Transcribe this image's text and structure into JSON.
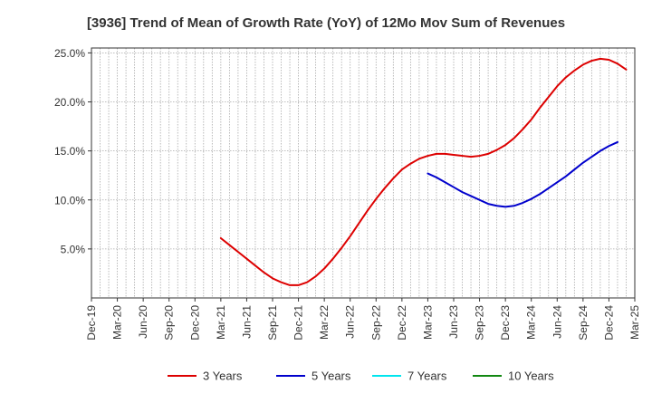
{
  "chart_data": {
    "type": "line",
    "title": "[3936]  Trend of Mean of Growth Rate (YoY) of 12Mo Mov Sum of Revenues",
    "xlabel": "",
    "ylabel": "",
    "x_ticks": [
      "Dec-19",
      "Mar-20",
      "Jun-20",
      "Sep-20",
      "Dec-20",
      "Mar-21",
      "Jun-21",
      "Sep-21",
      "Dec-21",
      "Mar-22",
      "Jun-22",
      "Sep-22",
      "Dec-22",
      "Mar-23",
      "Jun-23",
      "Sep-23",
      "Dec-23",
      "Mar-24",
      "Jun-24",
      "Sep-24",
      "Dec-24",
      "Mar-25"
    ],
    "y_ticks": [
      5.0,
      10.0,
      15.0,
      20.0,
      25.0
    ],
    "y_tick_labels": [
      "5.0%",
      "10.0%",
      "15.0%",
      "20.0%",
      "25.0%"
    ],
    "ylim": [
      0.0,
      25.5
    ],
    "x_range_months": [
      0,
      63
    ],
    "grid": true,
    "legend_position": "bottom",
    "series": [
      {
        "name": "3 Years",
        "color": "#dd0000",
        "points": [
          [
            15,
            6.1
          ],
          [
            16,
            5.4
          ],
          [
            17,
            4.7
          ],
          [
            18,
            4.0
          ],
          [
            19,
            3.3
          ],
          [
            20,
            2.6
          ],
          [
            21,
            2.0
          ],
          [
            22,
            1.6
          ],
          [
            23,
            1.3
          ],
          [
            24,
            1.3
          ],
          [
            25,
            1.6
          ],
          [
            26,
            2.2
          ],
          [
            27,
            3.0
          ],
          [
            28,
            4.0
          ],
          [
            29,
            5.1
          ],
          [
            30,
            6.3
          ],
          [
            31,
            7.6
          ],
          [
            32,
            8.9
          ],
          [
            33,
            10.1
          ],
          [
            34,
            11.2
          ],
          [
            35,
            12.2
          ],
          [
            36,
            13.1
          ],
          [
            37,
            13.7
          ],
          [
            38,
            14.2
          ],
          [
            39,
            14.5
          ],
          [
            40,
            14.7
          ],
          [
            41,
            14.7
          ],
          [
            42,
            14.6
          ],
          [
            43,
            14.5
          ],
          [
            44,
            14.4
          ],
          [
            45,
            14.5
          ],
          [
            46,
            14.7
          ],
          [
            47,
            15.1
          ],
          [
            48,
            15.6
          ],
          [
            49,
            16.3
          ],
          [
            50,
            17.2
          ],
          [
            51,
            18.2
          ],
          [
            52,
            19.4
          ],
          [
            53,
            20.5
          ],
          [
            54,
            21.6
          ],
          [
            55,
            22.5
          ],
          [
            56,
            23.2
          ],
          [
            57,
            23.8
          ],
          [
            58,
            24.2
          ],
          [
            59,
            24.4
          ],
          [
            60,
            24.3
          ],
          [
            61,
            23.9
          ],
          [
            62,
            23.3
          ]
        ]
      },
      {
        "name": "5 Years",
        "color": "#0000cc",
        "points": [
          [
            39,
            12.7
          ],
          [
            40,
            12.3
          ],
          [
            41,
            11.8
          ],
          [
            42,
            11.3
          ],
          [
            43,
            10.8
          ],
          [
            44,
            10.4
          ],
          [
            45,
            10.0
          ],
          [
            46,
            9.6
          ],
          [
            47,
            9.4
          ],
          [
            48,
            9.3
          ],
          [
            49,
            9.4
          ],
          [
            50,
            9.7
          ],
          [
            51,
            10.1
          ],
          [
            52,
            10.6
          ],
          [
            53,
            11.2
          ],
          [
            54,
            11.8
          ],
          [
            55,
            12.4
          ],
          [
            56,
            13.1
          ],
          [
            57,
            13.8
          ],
          [
            58,
            14.4
          ],
          [
            59,
            15.0
          ],
          [
            60,
            15.5
          ],
          [
            61,
            15.9
          ]
        ]
      },
      {
        "name": "7 Years",
        "color": "#00e5ee",
        "points": []
      },
      {
        "name": "10 Years",
        "color": "#118811",
        "points": []
      }
    ]
  }
}
